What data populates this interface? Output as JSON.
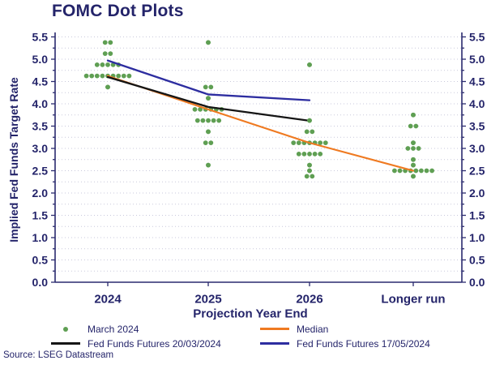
{
  "source": "Source: LSEG Datastream",
  "colors": {
    "text": "#24246a",
    "axis": "#2a2a6e",
    "grid": "#c9c9dc",
    "dots": "#5f9f53",
    "median": "#ef7a21",
    "futures_2003": "#151515",
    "futures_1705": "#2d2da0",
    "background": "#ffffff"
  },
  "chart_data": {
    "type": "scatter",
    "title": "FOMC Dot Plots",
    "xlabel": "Projection Year End",
    "ylabel": "Implied Fed Funds Target Rate",
    "categories": [
      "2024",
      "2025",
      "2026",
      "Longer run"
    ],
    "ylim": [
      0.0,
      5.7
    ],
    "yticks": [
      0.0,
      0.5,
      1.0,
      1.5,
      2.0,
      2.5,
      3.0,
      3.5,
      4.0,
      4.5,
      5.0,
      5.5
    ],
    "minor_grid_step": 0.25,
    "grid": "dotted horizontal lines every 0.25, duplicate y-axis on right",
    "legend_position": "bottom, two columns",
    "dot_series": {
      "name": "March 2024",
      "color": "#5f9f53",
      "groups": [
        {
          "category": "2024",
          "distribution": [
            {
              "rate": 5.375,
              "count": 2
            },
            {
              "rate": 5.125,
              "count": 2
            },
            {
              "rate": 4.875,
              "count": 5
            },
            {
              "rate": 4.625,
              "count": 9
            },
            {
              "rate": 4.375,
              "count": 1
            }
          ]
        },
        {
          "category": "2025",
          "distribution": [
            {
              "rate": 5.375,
              "count": 1
            },
            {
              "rate": 4.375,
              "count": 2
            },
            {
              "rate": 4.125,
              "count": 1
            },
            {
              "rate": 3.875,
              "count": 6
            },
            {
              "rate": 3.625,
              "count": 5
            },
            {
              "rate": 3.375,
              "count": 1
            },
            {
              "rate": 3.125,
              "count": 2
            },
            {
              "rate": 2.625,
              "count": 1
            }
          ]
        },
        {
          "category": "2026",
          "distribution": [
            {
              "rate": 4.875,
              "count": 1
            },
            {
              "rate": 3.625,
              "count": 1
            },
            {
              "rate": 3.375,
              "count": 2
            },
            {
              "rate": 3.125,
              "count": 7
            },
            {
              "rate": 2.875,
              "count": 5
            },
            {
              "rate": 2.625,
              "count": 1
            },
            {
              "rate": 2.5,
              "count": 1
            },
            {
              "rate": 2.375,
              "count": 2
            }
          ]
        },
        {
          "category": "Longer run",
          "distribution": [
            {
              "rate": 3.75,
              "count": 1
            },
            {
              "rate": 3.5,
              "count": 2
            },
            {
              "rate": 3.125,
              "count": 1
            },
            {
              "rate": 3.0,
              "count": 3
            },
            {
              "rate": 2.75,
              "count": 1
            },
            {
              "rate": 2.625,
              "count": 1
            },
            {
              "rate": 2.5,
              "count": 8
            },
            {
              "rate": 2.375,
              "count": 1
            }
          ]
        }
      ]
    },
    "lines": [
      {
        "name": "Median",
        "color": "#ef7a21",
        "width": 2.1,
        "points": [
          {
            "category": "2024",
            "rate": 4.625
          },
          {
            "category": "2025",
            "rate": 3.875
          },
          {
            "category": "2026",
            "rate": 3.125
          },
          {
            "category": "Longer run",
            "rate": 2.5
          }
        ]
      },
      {
        "name": "Fed Funds Futures 20/03/2024",
        "color": "#151515",
        "width": 2.3,
        "points": [
          {
            "category": "2024",
            "rate": 4.6
          },
          {
            "category": "2025",
            "rate": 3.93
          },
          {
            "category": "2026",
            "rate": 3.62
          }
        ]
      },
      {
        "name": "Fed Funds Futures 17/05/2024",
        "color": "#2d2da0",
        "width": 2.3,
        "points": [
          {
            "category": "2024",
            "rate": 4.97
          },
          {
            "category": "2025",
            "rate": 4.21
          },
          {
            "category": "2026",
            "rate": 4.08
          }
        ]
      }
    ],
    "legend": [
      {
        "label": "March 2024",
        "marker": "dot",
        "color": "#5f9f53"
      },
      {
        "label": "Median",
        "marker": "line",
        "color": "#ef7a21"
      },
      {
        "label": "Fed Funds Futures 20/03/2024",
        "marker": "line",
        "color": "#151515"
      },
      {
        "label": "Fed Funds Futures 17/05/2024",
        "marker": "line",
        "color": "#2d2da0"
      }
    ]
  }
}
